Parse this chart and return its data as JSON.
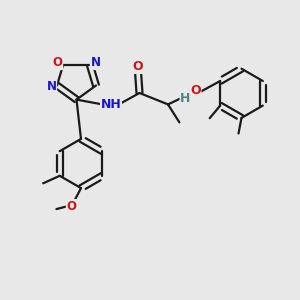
{
  "bg_color": "#e8e8e8",
  "bond_color": "#1a1a1a",
  "bond_width": 1.6,
  "atom_colors": {
    "N": "#1515cc",
    "O": "#cc1515",
    "H": "#4a8888"
  },
  "font_size": 8.5,
  "figsize": [
    3.0,
    3.0
  ],
  "dpi": 100,
  "xlim": [
    0,
    10
  ],
  "ylim": [
    0,
    10
  ]
}
